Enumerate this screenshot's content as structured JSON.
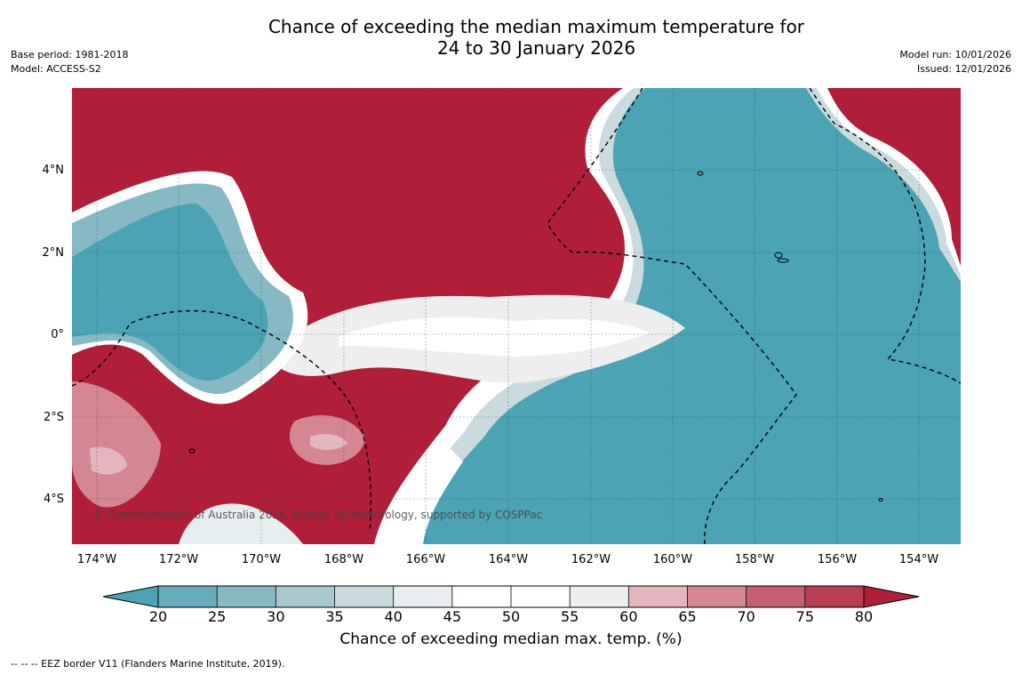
{
  "title": {
    "line1": "Chance of exceeding the median maximum temperature for",
    "line2": "24 to 30 January 2026"
  },
  "meta": {
    "base_period": "Base period: 1981-2018",
    "model": "Model: ACCESS-S2",
    "model_run": "Model run: 10/01/2026",
    "issued": "Issued: 12/01/2026"
  },
  "map": {
    "y_ticks": [
      "4°N",
      "2°N",
      "0°",
      "2°S",
      "4°S"
    ],
    "x_ticks": [
      "174°W",
      "172°W",
      "170°W",
      "168°W",
      "166°W",
      "164°W",
      "162°W",
      "160°W",
      "158°W",
      "156°W",
      "154°W"
    ],
    "copyright": "© Commonwealth of Australia 2026, Bureau of Meteorology, supported by COSPPac",
    "high_color": "#b01e3a",
    "low_color": "#4ba3b4"
  },
  "colorbar": {
    "ticks": [
      "20",
      "25",
      "30",
      "35",
      "40",
      "45",
      "50",
      "55",
      "60",
      "65",
      "70",
      "75",
      "80"
    ],
    "colors": [
      "#4ba3b4",
      "#68abbb",
      "#86b9c4",
      "#a9c8ce",
      "#cadadd",
      "#e7eef0",
      "#ffffff",
      "#ffffff",
      "#eeeeee",
      "#e3b6bd",
      "#d48793",
      "#c4606f",
      "#b83e53",
      "#b01e3a"
    ],
    "label": "Chance of exceeding median max. temp. (%)"
  },
  "footnote": "--  --  -- EEZ border V11 (Flanders Marine Institute, 2019)."
}
